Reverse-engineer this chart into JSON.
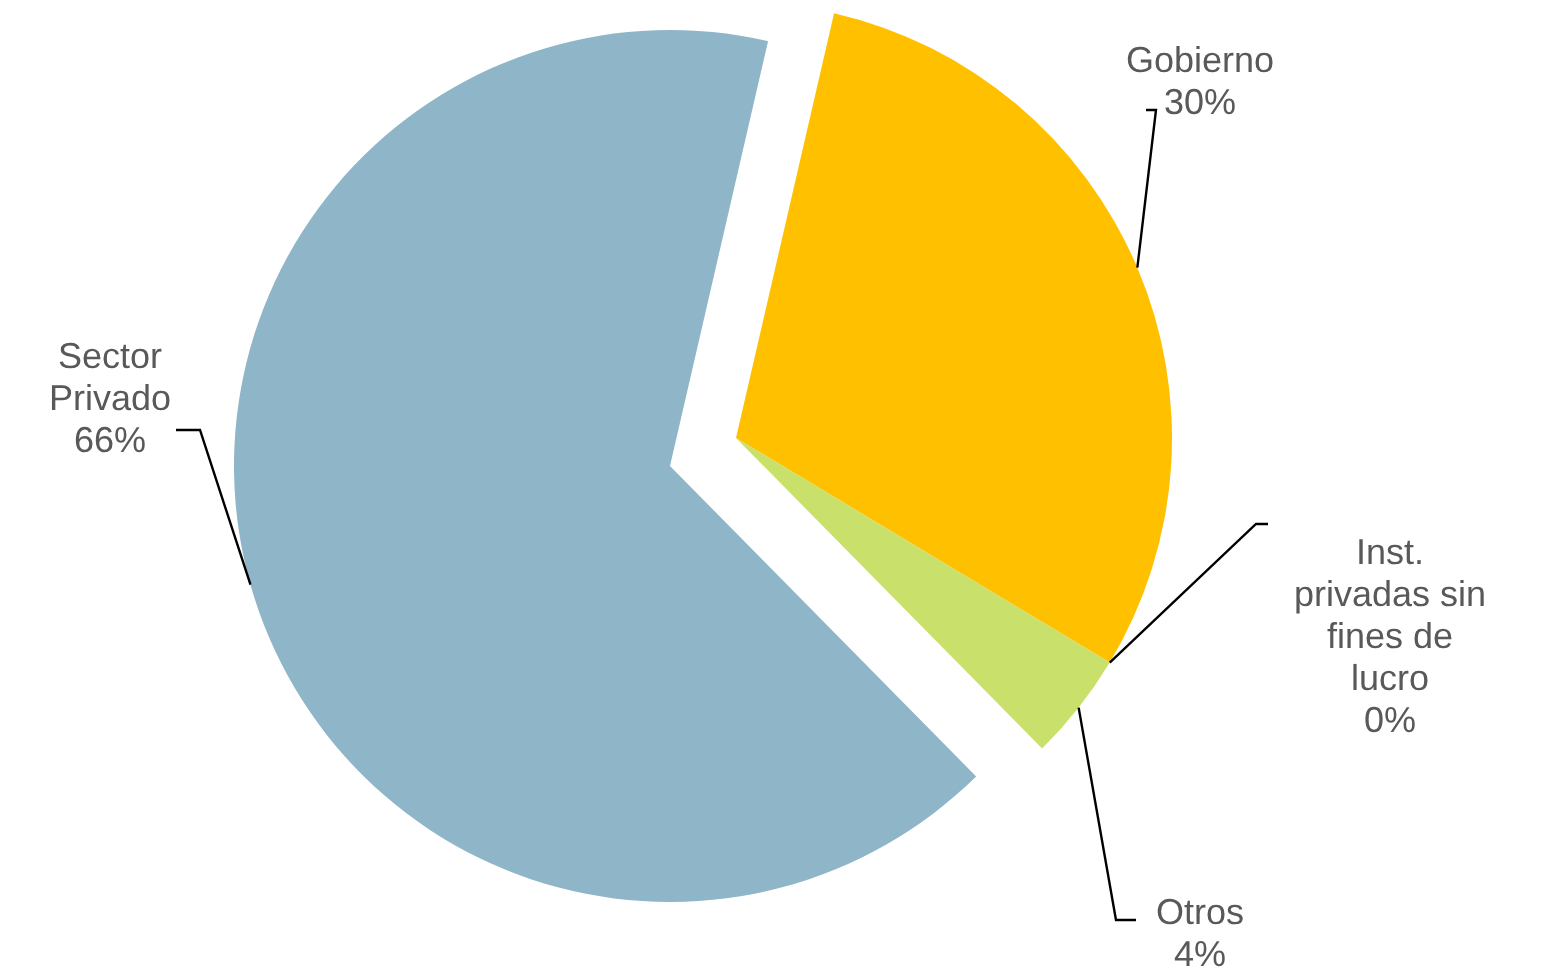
{
  "chart_data": {
    "type": "pie",
    "categories": [
      "Gobierno",
      "Inst. privadas sin fines de lucro",
      "Otros",
      "Sector Privado"
    ],
    "values": [
      30,
      0,
      4,
      66
    ],
    "value_labels": [
      "30%",
      "0%",
      "4%",
      "66%"
    ],
    "colors": [
      "#ffc000",
      "#c00000",
      "#c9e06b",
      "#8fb5c8"
    ]
  }
}
